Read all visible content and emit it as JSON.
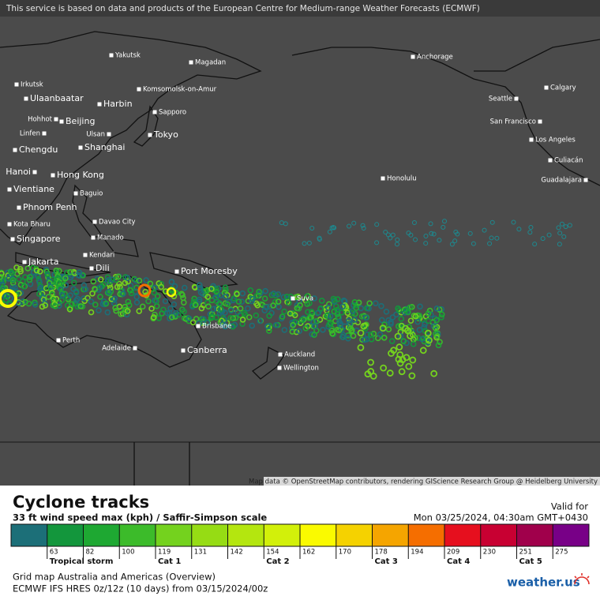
{
  "notice": "This service is based on data and products of the European Centre for Medium-range Weather Forecasts (ECMWF)",
  "attribution": "Map data © OpenStreetMap contributors, rendering GIScience Research Group @ Heidelberg University",
  "cities": [
    "Yakutsk",
    "Magadan",
    "Anchorage",
    "Irkutsk",
    "Ulaanbaatar",
    "Komsomolsk-on-Amur",
    "Harbin",
    "Calgary",
    "Seattle",
    "Hohhot",
    "Sapporo",
    "Beijing",
    "Linfen",
    "Ulsan",
    "Tokyo",
    "San Francisco",
    "Chengdu",
    "Shanghai",
    "Los Angeles",
    "Culiacán",
    "Hanoi",
    "Hong Kong",
    "Honolulu",
    "Guadalajara",
    "Vientiane",
    "Baguio",
    "Phnom Penh",
    "Davao City",
    "Kota Bharu",
    "Singapore",
    "Manado",
    "Kendari",
    "Jakarta",
    "Dili",
    "Port Moresby",
    "Suva",
    "Brisbane",
    "Perth",
    "Adelaide",
    "Canberra",
    "Auckland",
    "Wellington"
  ],
  "legend": {
    "title": "Cyclone tracks",
    "subtitle": "33 ft wind speed max (kph) / Saffir-Simpson scale",
    "valid_label": "Valid for",
    "valid_time": "Mon 03/25/2024, 04:30am GMT+0430",
    "colors": [
      "#1c6f78",
      "#13963c",
      "#1ea832",
      "#3cbb2a",
      "#74d21e",
      "#96dc14",
      "#b4e60f",
      "#d2f00a",
      "#fafa00",
      "#f5d200",
      "#f5a500",
      "#f56e00",
      "#e60f1e",
      "#c80032",
      "#a0004b",
      "#780087"
    ],
    "ticks": [
      63,
      82,
      100,
      119,
      131,
      142,
      154,
      162,
      170,
      178,
      194,
      209,
      230,
      251,
      275
    ],
    "categories": [
      {
        "label": "Tropical storm",
        "from": 63
      },
      {
        "label": "Cat 1",
        "from": 119
      },
      {
        "label": "Cat 2",
        "from": 154
      },
      {
        "label": "Cat 3",
        "from": 178
      },
      {
        "label": "Cat 4",
        "from": 209
      },
      {
        "label": "Cat 5",
        "from": 251
      }
    ],
    "grid_map": "Grid map Australia and Americas (Overview)",
    "model": "ECMWF IFS HRES 0z/12z (10 days)  from  03/15/2024/00z"
  },
  "logo": "weather.us"
}
